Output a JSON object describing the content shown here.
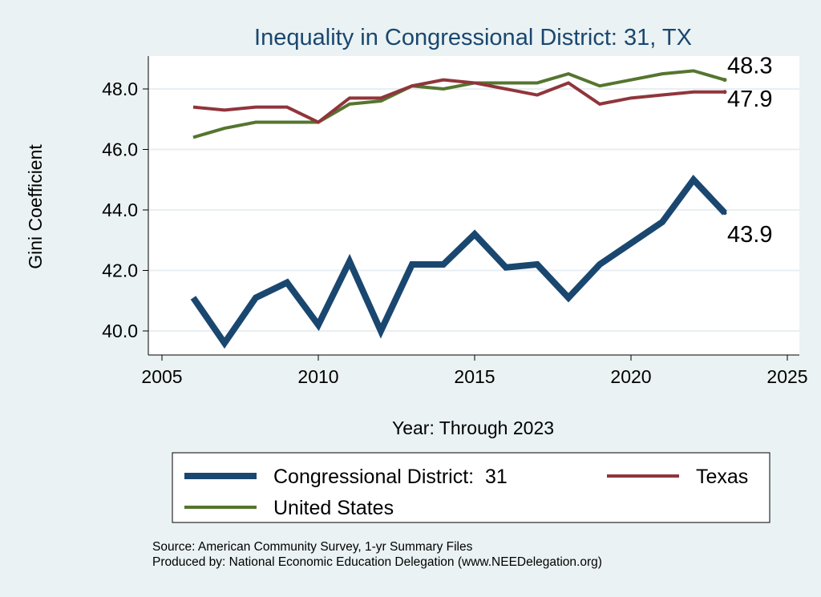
{
  "chart_data": {
    "type": "line",
    "title": "Inequality in Congressional District:  31, TX",
    "xlabel": "Year: Through 2023",
    "ylabel": "Gini Coefficient",
    "xlim": [
      2005,
      2025
    ],
    "ylim": [
      39.2,
      49.0
    ],
    "xticks": [
      2005,
      2010,
      2015,
      2020,
      2025
    ],
    "yticks": [
      40,
      42,
      44,
      46,
      48
    ],
    "ytick_labels": [
      "40.0",
      "42.0",
      "44.0",
      "46.0",
      "48.0"
    ],
    "grid": true,
    "x": [
      2006,
      2007,
      2008,
      2009,
      2010,
      2011,
      2012,
      2013,
      2014,
      2015,
      2016,
      2017,
      2018,
      2019,
      2020,
      2021,
      2022,
      2023
    ],
    "series": [
      {
        "name": "Congressional District:  31",
        "color": "#1a476f",
        "end_label": "43.9",
        "values": [
          41.1,
          39.6,
          41.1,
          41.6,
          40.2,
          42.3,
          40.0,
          42.2,
          42.2,
          43.2,
          42.1,
          42.2,
          41.1,
          42.2,
          42.9,
          43.6,
          45.0,
          43.9
        ]
      },
      {
        "name": "Texas",
        "color": "#90353b",
        "end_label": "47.9",
        "values": [
          47.4,
          47.3,
          47.4,
          47.4,
          46.9,
          47.7,
          47.7,
          48.1,
          48.3,
          48.2,
          48.0,
          47.8,
          48.2,
          47.5,
          47.7,
          47.8,
          47.9,
          47.9
        ]
      },
      {
        "name": "United States",
        "color": "#55752f",
        "end_label": "48.3",
        "values": [
          46.4,
          46.7,
          46.9,
          46.9,
          46.9,
          47.5,
          47.6,
          48.1,
          48.0,
          48.2,
          48.2,
          48.2,
          48.5,
          48.1,
          48.3,
          48.5,
          48.6,
          48.3
        ]
      }
    ],
    "legend_position": "bottom",
    "notes": [
      "Source: American Community Survey, 1-yr Summary Files",
      "Produced by: National Economic Education Delegation (www.NEEDelegation.org)"
    ]
  }
}
